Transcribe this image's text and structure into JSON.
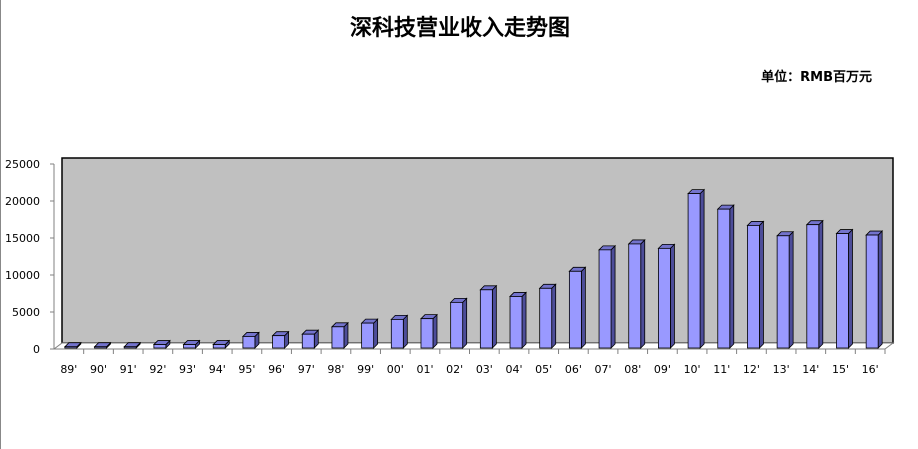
{
  "chart_data": {
    "type": "bar",
    "title": "深科技营业收入走势图",
    "unit_label": "单位：RMB百万元",
    "categories": [
      "89'",
      "90'",
      "91'",
      "92'",
      "93'",
      "94'",
      "95'",
      "96'",
      "97'",
      "98'",
      "99'",
      "00'",
      "01'",
      "02'",
      "03'",
      "04'",
      "05'",
      "06'",
      "07'",
      "08'",
      "09'",
      "10'",
      "11'",
      "12'",
      "13'",
      "14'",
      "15'",
      "16'"
    ],
    "values": [
      300,
      300,
      300,
      600,
      600,
      600,
      1700,
      1800,
      2000,
      3000,
      3500,
      4000,
      4100,
      6300,
      8000,
      7100,
      8200,
      10500,
      13400,
      14200,
      13600,
      21000,
      18900,
      16700,
      15300,
      16800,
      15600,
      15400
    ],
    "yticks": [
      "0",
      "5000",
      "10000",
      "15000",
      "20000",
      "25000"
    ],
    "ylim": [
      0,
      25000
    ],
    "grid": false,
    "colors": {
      "bar_front": "#9999ff",
      "bar_side": "#4d4d99",
      "bar_top": "#7373cc",
      "wall": "#c0c0c0"
    }
  }
}
